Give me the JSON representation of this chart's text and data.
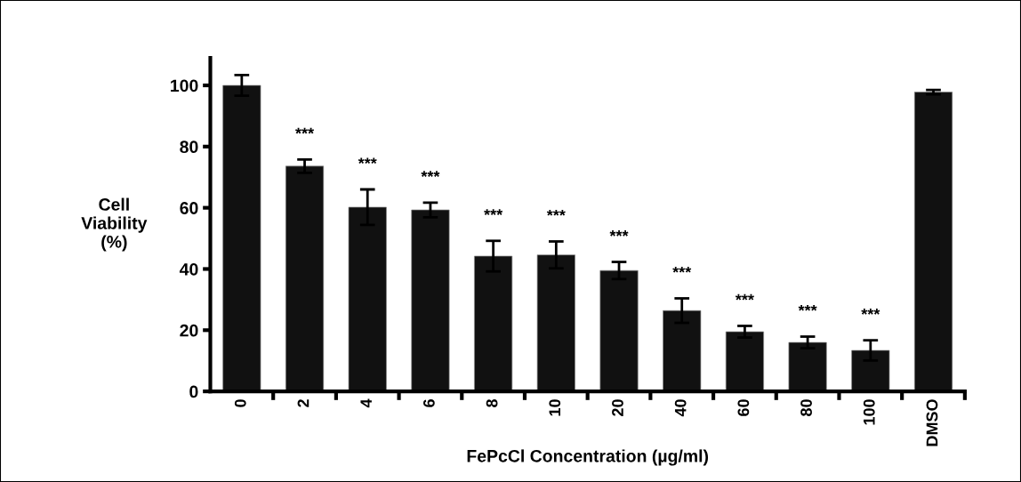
{
  "chart_data": {
    "type": "bar",
    "xlabel": "FePcCl Concentration (µg/ml)",
    "ylabel": "Cell\nViability\n(%)",
    "categories": [
      "0",
      "2",
      "4",
      "6",
      "8",
      "10",
      "20",
      "40",
      "60",
      "80",
      "100",
      "DMSO"
    ],
    "values": [
      100,
      73.6,
      60.2,
      59.3,
      44.2,
      44.6,
      39.5,
      26.4,
      19.5,
      16.0,
      13.4,
      97.8
    ],
    "errors": [
      3.4,
      2.2,
      5.8,
      2.4,
      5.0,
      4.4,
      2.8,
      4.0,
      1.9,
      1.9,
      3.3,
      0.7
    ],
    "color": "#111111",
    "ylim": [
      0,
      109
    ],
    "yticks": [
      0,
      20,
      40,
      60,
      80,
      100
    ],
    "grid": false,
    "legend": false,
    "annotations": [
      {
        "text": "***",
        "x": "2",
        "y": 73.6
      },
      {
        "text": "***",
        "x": "4",
        "y": 60.2
      },
      {
        "text": "***",
        "x": "6",
        "y": 59.3
      },
      {
        "text": "***",
        "x": "8",
        "y": 44.2
      },
      {
        "text": "***",
        "x": "10",
        "y": 44.6
      },
      {
        "text": "***",
        "x": "20",
        "y": 39.5
      },
      {
        "text": "***",
        "x": "40",
        "y": 26.4
      },
      {
        "text": "***",
        "x": "60",
        "y": 19.5
      },
      {
        "text": "***",
        "x": "80",
        "y": 16.0
      },
      {
        "text": "***",
        "x": "100",
        "y": 13.4
      }
    ]
  }
}
